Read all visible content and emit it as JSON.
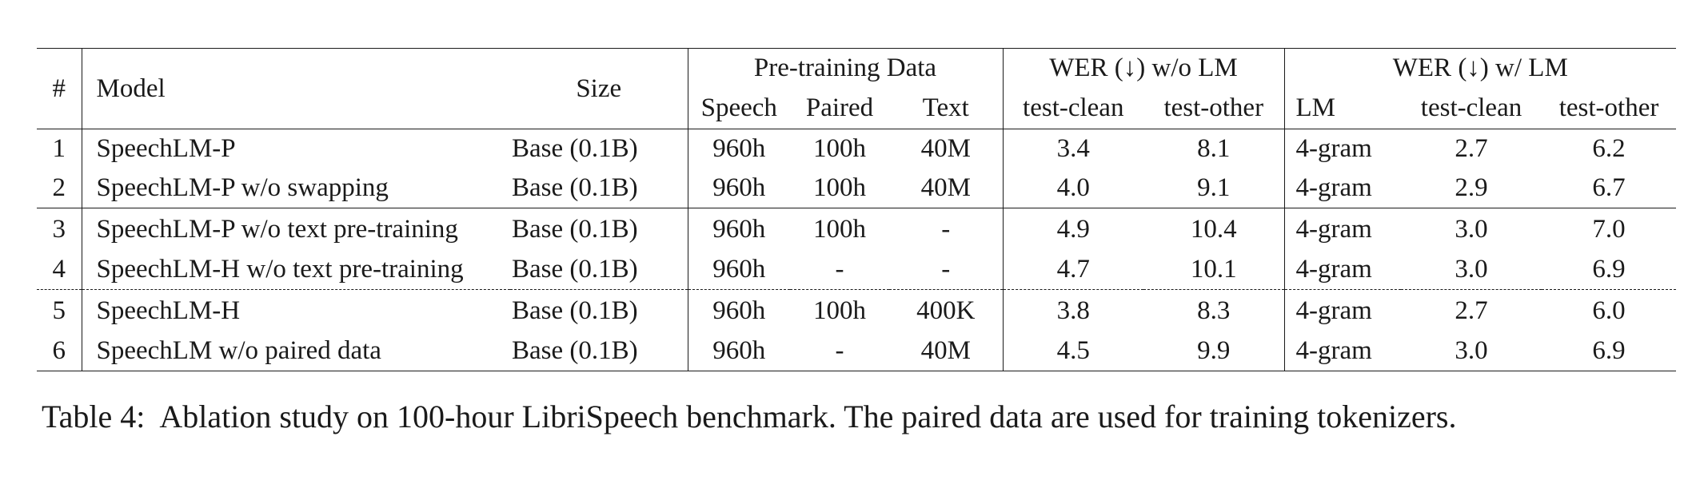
{
  "table": {
    "headers": {
      "index": "#",
      "model": "Model",
      "size": "Size",
      "pretraining_group": "Pre-training Data",
      "pretraining_cols": [
        "Speech",
        "Paired",
        "Text"
      ],
      "wer_no_lm_group": "WER (↓) w/o LM",
      "wer_no_lm_cols": [
        "test-clean",
        "test-other"
      ],
      "wer_lm_group": "WER (↓) w/ LM",
      "wer_lm_cols": [
        "LM",
        "test-clean",
        "test-other"
      ]
    },
    "rows": [
      {
        "idx": "1",
        "model": "SpeechLM-P",
        "size": "Base (0.1B)",
        "speech": "960h",
        "paired": "100h",
        "text": "40M",
        "clean": "3.4",
        "other": "8.1",
        "lm": "4-gram",
        "lm_clean": "2.7",
        "lm_other": "6.2"
      },
      {
        "idx": "2",
        "model": "SpeechLM-P w/o swapping",
        "size": "Base (0.1B)",
        "speech": "960h",
        "paired": "100h",
        "text": "40M",
        "clean": "4.0",
        "other": "9.1",
        "lm": "4-gram",
        "lm_clean": "2.9",
        "lm_other": "6.7"
      },
      {
        "idx": "3",
        "model": "SpeechLM-P w/o text pre-training",
        "size": "Base (0.1B)",
        "speech": "960h",
        "paired": "100h",
        "text": "-",
        "clean": "4.9",
        "other": "10.4",
        "lm": "4-gram",
        "lm_clean": "3.0",
        "lm_other": "7.0"
      },
      {
        "idx": "4",
        "model": "SpeechLM-H w/o text pre-training",
        "size": "Base (0.1B)",
        "speech": "960h",
        "paired": "-",
        "text": "-",
        "clean": "4.7",
        "other": "10.1",
        "lm": "4-gram",
        "lm_clean": "3.0",
        "lm_other": "6.9"
      },
      {
        "idx": "5",
        "model": "SpeechLM-H",
        "size": "Base (0.1B)",
        "speech": "960h",
        "paired": "100h",
        "text": "400K",
        "clean": "3.8",
        "other": "8.3",
        "lm": "4-gram",
        "lm_clean": "2.7",
        "lm_other": "6.0"
      },
      {
        "idx": "6",
        "model": "SpeechLM w/o paired data",
        "size": "Base (0.1B)",
        "speech": "960h",
        "paired": "-",
        "text": "40M",
        "clean": "4.5",
        "other": "9.9",
        "lm": "4-gram",
        "lm_clean": "3.0",
        "lm_other": "6.9"
      }
    ]
  },
  "caption": {
    "label": "Table 4:",
    "text": "Ablation study on 100-hour LibriSpeech benchmark. The paired data are used for training tokenizers."
  }
}
